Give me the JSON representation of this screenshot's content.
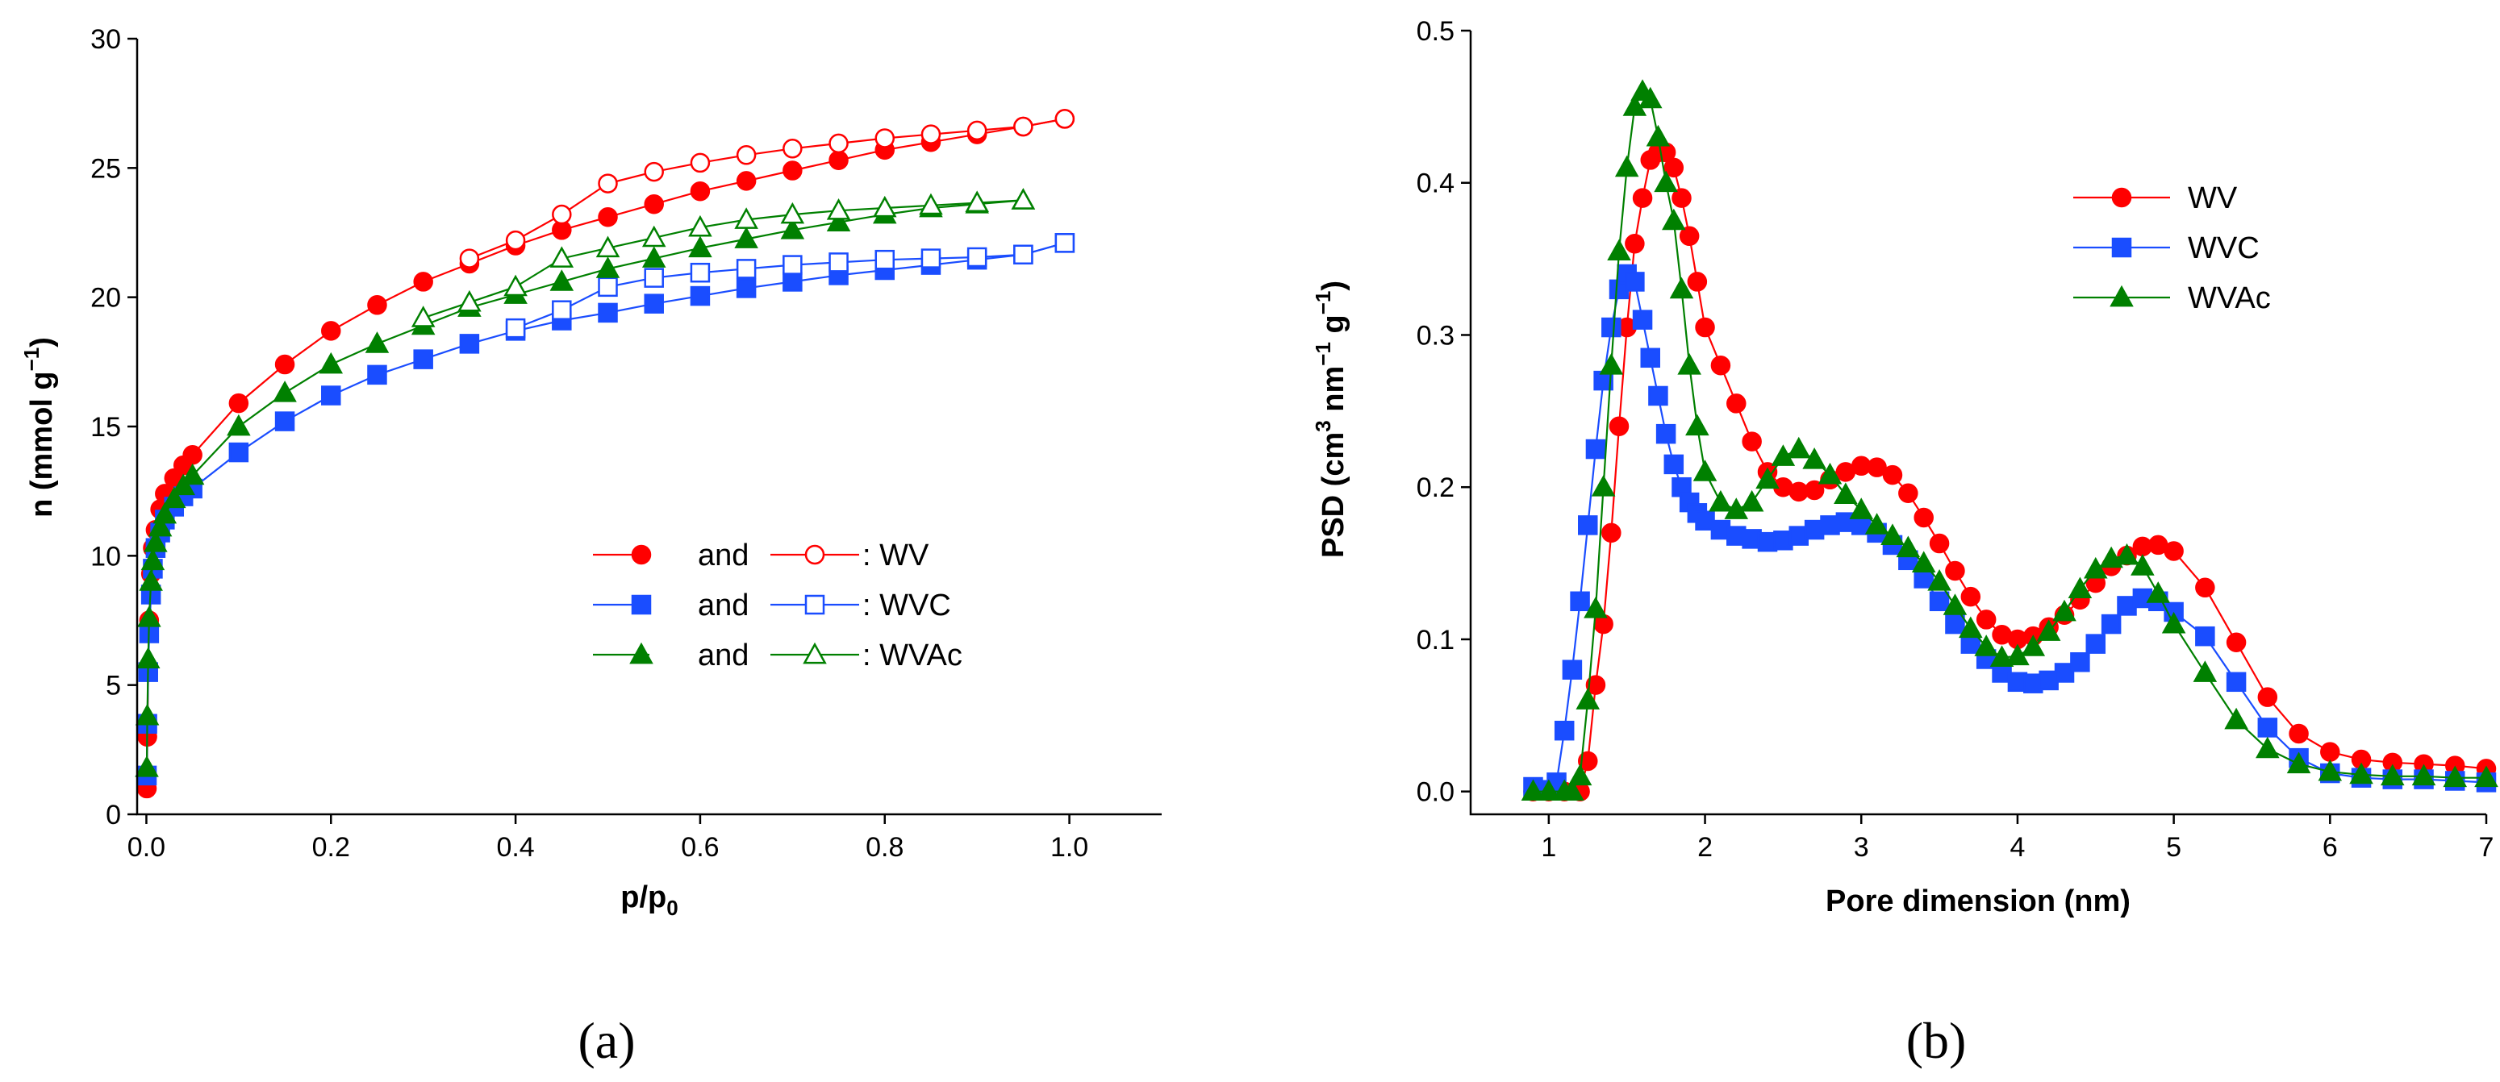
{
  "colors": {
    "WV": "#ff0000",
    "WVC": "#1a4dff",
    "WVAc": "#008000"
  },
  "chart_data": [
    {
      "type": "line",
      "panel_label": "(a)",
      "xlabel": {
        "main": "p/p",
        "sub": "0"
      },
      "ylabel": {
        "main": "n (mmol g",
        "sup": "−1",
        "tail": ")"
      },
      "xlim": [
        -0.01,
        1.1
      ],
      "ylim": [
        0,
        30
      ],
      "xticks": [
        0.0,
        0.2,
        0.4,
        0.6,
        0.8,
        1.0
      ],
      "xtick_labels": [
        "0.0",
        "0.2",
        "0.4",
        "0.6",
        "0.8",
        "1.0"
      ],
      "yticks": [
        0,
        5,
        10,
        15,
        20,
        25,
        30
      ],
      "ytick_labels": [
        "0",
        "5",
        "10",
        "15",
        "20",
        "25",
        "30"
      ],
      "legend": [
        {
          "word": "and",
          "label": ": WV",
          "color_key": "WV",
          "marker": "circle"
        },
        {
          "word": "and",
          "label": ": WVC",
          "color_key": "WVC",
          "marker": "square"
        },
        {
          "word": "and",
          "label": ": WVAc",
          "color_key": "WVAc",
          "marker": "triangle"
        }
      ],
      "series": [
        {
          "name": "WV adsorption",
          "color_key": "WV",
          "marker": "circle",
          "filled": true,
          "x": [
            0.0005,
            0.001,
            0.002,
            0.003,
            0.005,
            0.007,
            0.01,
            0.015,
            0.02,
            0.03,
            0.04,
            0.05,
            0.1,
            0.15,
            0.2,
            0.25,
            0.3,
            0.35,
            0.4,
            0.45,
            0.5,
            0.55,
            0.6,
            0.65,
            0.7,
            0.75,
            0.8,
            0.85,
            0.9,
            0.95,
            0.995
          ],
          "y": [
            1.0,
            3.0,
            5.5,
            7.5,
            9.3,
            10.3,
            11.0,
            11.8,
            12.4,
            13.0,
            13.5,
            13.9,
            15.9,
            17.4,
            18.7,
            19.7,
            20.6,
            21.3,
            22.0,
            22.6,
            23.1,
            23.6,
            24.1,
            24.5,
            24.9,
            25.3,
            25.7,
            26.0,
            26.3,
            26.6,
            26.9
          ]
        },
        {
          "name": "WV desorption",
          "color_key": "WV",
          "marker": "circle",
          "filled": false,
          "x": [
            0.995,
            0.95,
            0.9,
            0.85,
            0.8,
            0.75,
            0.7,
            0.65,
            0.6,
            0.55,
            0.5,
            0.45,
            0.4,
            0.35
          ],
          "y": [
            26.9,
            26.6,
            26.45,
            26.3,
            26.15,
            25.95,
            25.75,
            25.5,
            25.2,
            24.85,
            24.4,
            23.2,
            22.2,
            21.5
          ]
        },
        {
          "name": "WVC adsorption",
          "color_key": "WVC",
          "marker": "square",
          "filled": true,
          "x": [
            0.0005,
            0.001,
            0.002,
            0.003,
            0.005,
            0.007,
            0.01,
            0.015,
            0.02,
            0.03,
            0.04,
            0.05,
            0.1,
            0.15,
            0.2,
            0.25,
            0.3,
            0.35,
            0.4,
            0.45,
            0.5,
            0.55,
            0.6,
            0.65,
            0.7,
            0.75,
            0.8,
            0.85,
            0.9,
            0.95,
            0.995
          ],
          "y": [
            1.5,
            3.5,
            5.5,
            7.0,
            8.5,
            9.5,
            10.3,
            10.9,
            11.4,
            11.9,
            12.3,
            12.6,
            14.0,
            15.2,
            16.2,
            17.0,
            17.6,
            18.2,
            18.7,
            19.1,
            19.4,
            19.75,
            20.05,
            20.35,
            20.6,
            20.85,
            21.05,
            21.25,
            21.45,
            21.65,
            22.1
          ]
        },
        {
          "name": "WVC desorption",
          "color_key": "WVC",
          "marker": "square",
          "filled": false,
          "x": [
            0.995,
            0.95,
            0.9,
            0.85,
            0.8,
            0.75,
            0.7,
            0.65,
            0.6,
            0.55,
            0.5,
            0.45,
            0.4
          ],
          "y": [
            22.1,
            21.65,
            21.55,
            21.5,
            21.45,
            21.35,
            21.25,
            21.1,
            20.95,
            20.75,
            20.4,
            19.5,
            18.8
          ]
        },
        {
          "name": "WVAc adsorption",
          "color_key": "WVAc",
          "marker": "triangle",
          "filled": true,
          "x": [
            0.0005,
            0.001,
            0.002,
            0.003,
            0.005,
            0.007,
            0.01,
            0.015,
            0.02,
            0.03,
            0.04,
            0.05,
            0.1,
            0.15,
            0.2,
            0.25,
            0.3,
            0.35,
            0.4,
            0.45,
            0.5,
            0.55,
            0.6,
            0.65,
            0.7,
            0.75,
            0.8,
            0.85,
            0.9,
            0.95
          ],
          "y": [
            1.8,
            3.8,
            6.0,
            7.6,
            9.0,
            9.8,
            10.5,
            11.1,
            11.6,
            12.2,
            12.7,
            13.1,
            15.0,
            16.3,
            17.4,
            18.2,
            18.9,
            19.6,
            20.1,
            20.6,
            21.1,
            21.5,
            21.9,
            22.25,
            22.6,
            22.9,
            23.2,
            23.45,
            23.6,
            23.75
          ]
        },
        {
          "name": "WVAc desorption",
          "color_key": "WVAc",
          "marker": "triangle",
          "filled": false,
          "x": [
            0.95,
            0.9,
            0.85,
            0.8,
            0.75,
            0.7,
            0.65,
            0.6,
            0.55,
            0.5,
            0.45,
            0.4,
            0.35,
            0.3
          ],
          "y": [
            23.75,
            23.65,
            23.55,
            23.45,
            23.35,
            23.2,
            23.0,
            22.7,
            22.3,
            21.9,
            21.5,
            20.4,
            19.8,
            19.2
          ]
        }
      ]
    },
    {
      "type": "line",
      "panel_label": "(b)",
      "xlabel": {
        "main": "Pore dimension (nm)"
      },
      "ylabel": {
        "main": "PSD (cm",
        "sup1": "3",
        "mid": " nm",
        "sup2": "−1",
        "mid2": " g",
        "sup3": "−1",
        "tail": ")"
      },
      "xlim": [
        0.5,
        7
      ],
      "ylim": [
        -0.015,
        0.5
      ],
      "xticks": [
        1,
        2,
        3,
        4,
        5,
        6,
        7
      ],
      "xtick_labels": [
        "1",
        "2",
        "3",
        "4",
        "5",
        "6",
        "7"
      ],
      "yticks": [
        0.0,
        0.1,
        0.2,
        0.3,
        0.4,
        0.5
      ],
      "ytick_labels": [
        "0.0",
        "0.1",
        "0.2",
        "0.3",
        "0.4",
        "0.5"
      ],
      "legend": [
        {
          "label": "WV",
          "color_key": "WV",
          "marker": "circle"
        },
        {
          "label": "WVC",
          "color_key": "WVC",
          "marker": "square"
        },
        {
          "label": "WVAc",
          "color_key": "WVAc",
          "marker": "triangle"
        }
      ],
      "series": [
        {
          "name": "WV",
          "color_key": "WV",
          "marker": "circle",
          "filled": true,
          "x": [
            0.9,
            1.0,
            1.1,
            1.2,
            1.25,
            1.3,
            1.35,
            1.4,
            1.45,
            1.5,
            1.55,
            1.6,
            1.65,
            1.7,
            1.75,
            1.8,
            1.85,
            1.9,
            1.95,
            2.0,
            2.1,
            2.2,
            2.3,
            2.4,
            2.5,
            2.6,
            2.7,
            2.8,
            2.9,
            3.0,
            3.1,
            3.2,
            3.3,
            3.4,
            3.5,
            3.6,
            3.7,
            3.8,
            3.9,
            4.0,
            4.1,
            4.2,
            4.3,
            4.4,
            4.5,
            4.6,
            4.7,
            4.8,
            4.9,
            5.0,
            5.2,
            5.4,
            5.6,
            5.8,
            6.0,
            6.2,
            6.4,
            6.6,
            6.8,
            7.0
          ],
          "y": [
            0.0,
            0.0,
            0.0,
            0.0,
            0.02,
            0.07,
            0.11,
            0.17,
            0.24,
            0.305,
            0.36,
            0.39,
            0.415,
            0.42,
            0.42,
            0.41,
            0.39,
            0.365,
            0.335,
            0.305,
            0.28,
            0.255,
            0.23,
            0.21,
            0.2,
            0.197,
            0.198,
            0.205,
            0.21,
            0.214,
            0.213,
            0.208,
            0.196,
            0.18,
            0.163,
            0.145,
            0.128,
            0.113,
            0.103,
            0.1,
            0.102,
            0.108,
            0.116,
            0.126,
            0.137,
            0.148,
            0.155,
            0.161,
            0.162,
            0.158,
            0.134,
            0.098,
            0.062,
            0.038,
            0.026,
            0.021,
            0.019,
            0.018,
            0.017,
            0.015
          ]
        },
        {
          "name": "WVC",
          "color_key": "WVC",
          "marker": "square",
          "filled": true,
          "x": [
            0.9,
            0.95,
            1.0,
            1.05,
            1.1,
            1.15,
            1.2,
            1.25,
            1.3,
            1.35,
            1.4,
            1.45,
            1.5,
            1.55,
            1.6,
            1.65,
            1.7,
            1.75,
            1.8,
            1.85,
            1.9,
            1.95,
            2.0,
            2.1,
            2.2,
            2.3,
            2.4,
            2.5,
            2.6,
            2.7,
            2.8,
            2.9,
            3.0,
            3.1,
            3.2,
            3.3,
            3.4,
            3.5,
            3.6,
            3.7,
            3.8,
            3.9,
            4.0,
            4.1,
            4.2,
            4.3,
            4.4,
            4.5,
            4.6,
            4.7,
            4.8,
            4.9,
            5.0,
            5.2,
            5.4,
            5.6,
            5.8,
            6.0,
            6.2,
            6.4,
            6.6,
            6.8,
            7.0
          ],
          "y": [
            0.003,
            0.001,
            0.001,
            0.006,
            0.04,
            0.08,
            0.125,
            0.175,
            0.225,
            0.27,
            0.305,
            0.33,
            0.34,
            0.335,
            0.31,
            0.285,
            0.26,
            0.235,
            0.215,
            0.2,
            0.19,
            0.183,
            0.178,
            0.172,
            0.168,
            0.166,
            0.164,
            0.165,
            0.168,
            0.172,
            0.175,
            0.177,
            0.175,
            0.17,
            0.162,
            0.152,
            0.14,
            0.125,
            0.11,
            0.097,
            0.087,
            0.078,
            0.072,
            0.071,
            0.073,
            0.078,
            0.085,
            0.097,
            0.11,
            0.122,
            0.127,
            0.125,
            0.118,
            0.102,
            0.072,
            0.042,
            0.022,
            0.012,
            0.009,
            0.008,
            0.008,
            0.007,
            0.006
          ]
        },
        {
          "name": "WVAc",
          "color_key": "WVAc",
          "marker": "triangle",
          "filled": true,
          "x": [
            0.9,
            1.0,
            1.1,
            1.15,
            1.2,
            1.25,
            1.3,
            1.35,
            1.4,
            1.45,
            1.5,
            1.55,
            1.6,
            1.65,
            1.7,
            1.75,
            1.8,
            1.85,
            1.9,
            1.95,
            2.0,
            2.1,
            2.2,
            2.3,
            2.4,
            2.5,
            2.6,
            2.7,
            2.8,
            2.9,
            3.0,
            3.1,
            3.2,
            3.3,
            3.4,
            3.5,
            3.6,
            3.7,
            3.8,
            3.9,
            4.0,
            4.1,
            4.2,
            4.3,
            4.4,
            4.5,
            4.6,
            4.7,
            4.8,
            4.9,
            5.0,
            5.2,
            5.4,
            5.6,
            5.8,
            6.0,
            6.2,
            6.4,
            6.6,
            6.8,
            7.0
          ],
          "y": [
            0.0,
            0.0,
            0.0,
            0.0,
            0.01,
            0.06,
            0.12,
            0.2,
            0.28,
            0.355,
            0.41,
            0.45,
            0.46,
            0.455,
            0.43,
            0.4,
            0.375,
            0.33,
            0.28,
            0.24,
            0.21,
            0.19,
            0.185,
            0.19,
            0.205,
            0.22,
            0.225,
            0.218,
            0.208,
            0.195,
            0.185,
            0.175,
            0.168,
            0.16,
            0.15,
            0.138,
            0.122,
            0.107,
            0.095,
            0.088,
            0.089,
            0.095,
            0.105,
            0.118,
            0.133,
            0.146,
            0.153,
            0.155,
            0.148,
            0.13,
            0.11,
            0.078,
            0.047,
            0.028,
            0.018,
            0.013,
            0.011,
            0.01,
            0.01,
            0.009,
            0.009
          ]
        }
      ]
    }
  ]
}
